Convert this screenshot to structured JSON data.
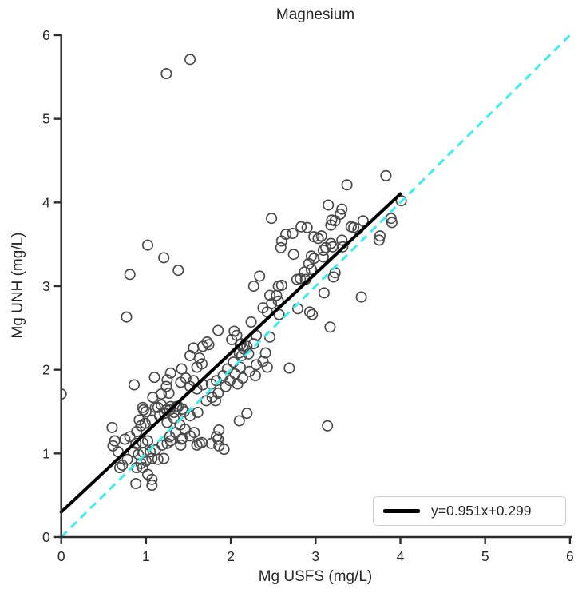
{
  "chart_data": {
    "type": "scatter",
    "title": "Magnesium",
    "xlabel": "Mg USFS (mg/L)",
    "ylabel": "Mg UNH (mg/L)",
    "xlim": [
      0,
      6
    ],
    "ylim": [
      0,
      6
    ],
    "xticks": [
      0,
      1,
      2,
      3,
      4,
      5,
      6
    ],
    "yticks": [
      0,
      1,
      2,
      3,
      4,
      5,
      6
    ],
    "grid": false,
    "legend": {
      "position": "lower right",
      "entries": [
        {
          "label": "y=0.951x+0.299",
          "color": "#000000",
          "style": "solid"
        }
      ]
    },
    "lines": [
      {
        "name": "identity",
        "from": [
          0,
          0
        ],
        "to": [
          6,
          6
        ],
        "color": "#3deded",
        "style": "dashed",
        "width": 3
      },
      {
        "name": "regression",
        "label": "y=0.951x+0.299",
        "slope": 0.951,
        "intercept": 0.299,
        "from": [
          0,
          0.299
        ],
        "to": [
          4,
          4.103
        ],
        "color": "#000000",
        "style": "solid",
        "width": 4
      }
    ],
    "marker": {
      "shape": "open-circle",
      "edge_color": "#4a4a4a",
      "fill": "none"
    },
    "points": [
      [
        1.24,
        5.54
      ],
      [
        1.52,
        5.71
      ],
      [
        0.0,
        1.71
      ],
      [
        0.6,
        1.31
      ],
      [
        0.77,
        2.63
      ],
      [
        0.81,
        3.14
      ],
      [
        1.02,
        3.49
      ],
      [
        1.21,
        3.34
      ],
      [
        1.38,
        3.19
      ],
      [
        2.69,
        2.02
      ],
      [
        3.14,
        1.33
      ],
      [
        3.54,
        2.87
      ],
      [
        3.17,
        2.51
      ],
      [
        2.46,
        2.39
      ],
      [
        3.83,
        4.32
      ],
      [
        3.37,
        4.21
      ],
      [
        4.01,
        4.02
      ],
      [
        3.15,
        3.97
      ],
      [
        3.31,
        3.92
      ],
      [
        3.29,
        3.86
      ],
      [
        3.23,
        3.78
      ],
      [
        3.18,
        3.73
      ],
      [
        3.56,
        3.78
      ],
      [
        3.45,
        3.7
      ],
      [
        3.5,
        3.68
      ],
      [
        3.89,
        3.81
      ],
      [
        3.9,
        3.76
      ],
      [
        3.76,
        3.6
      ],
      [
        3.75,
        3.55
      ],
      [
        3.07,
        3.6
      ],
      [
        3.18,
        3.51
      ],
      [
        3.12,
        3.46
      ],
      [
        3.09,
        3.43
      ],
      [
        3.2,
        3.47
      ],
      [
        3.32,
        3.47
      ],
      [
        3.31,
        3.55
      ],
      [
        3.42,
        3.71
      ],
      [
        3.09,
        3.35
      ],
      [
        3.23,
        3.16
      ],
      [
        3.21,
        3.11
      ],
      [
        3.1,
        2.92
      ],
      [
        2.48,
        3.81
      ],
      [
        2.83,
        3.71
      ],
      [
        2.9,
        3.7
      ],
      [
        3.19,
        3.79
      ],
      [
        2.65,
        3.62
      ],
      [
        2.73,
        3.63
      ],
      [
        2.6,
        3.54
      ],
      [
        2.59,
        3.46
      ],
      [
        2.74,
        3.38
      ],
      [
        2.98,
        3.59
      ],
      [
        3.03,
        3.57
      ],
      [
        2.95,
        3.36
      ],
      [
        2.98,
        3.33
      ],
      [
        2.92,
        3.27
      ],
      [
        2.95,
        3.2
      ],
      [
        2.87,
        3.17
      ],
      [
        2.82,
        3.09
      ],
      [
        2.78,
        3.08
      ],
      [
        2.88,
        3.08
      ],
      [
        2.34,
        3.12
      ],
      [
        2.27,
        3.0
      ],
      [
        2.6,
        3.01
      ],
      [
        2.56,
        3.0
      ],
      [
        2.93,
        2.69
      ],
      [
        2.96,
        2.66
      ],
      [
        2.79,
        2.73
      ],
      [
        2.46,
        2.89
      ],
      [
        2.54,
        2.89
      ],
      [
        2.56,
        2.82
      ],
      [
        2.48,
        2.79
      ],
      [
        2.38,
        2.74
      ],
      [
        2.43,
        2.69
      ],
      [
        2.57,
        2.66
      ],
      [
        2.24,
        2.57
      ],
      [
        2.04,
        2.46
      ],
      [
        2.07,
        2.41
      ],
      [
        1.85,
        2.47
      ],
      [
        1.72,
        2.33
      ],
      [
        2.01,
        2.36
      ],
      [
        2.12,
        2.31
      ],
      [
        2.15,
        2.25
      ],
      [
        2.19,
        2.28
      ],
      [
        2.1,
        2.2
      ],
      [
        2.3,
        2.41
      ],
      [
        1.56,
        2.26
      ],
      [
        1.67,
        2.28
      ],
      [
        1.74,
        2.3
      ],
      [
        1.52,
        2.17
      ],
      [
        1.63,
        2.14
      ],
      [
        1.66,
        2.07
      ],
      [
        1.6,
        2.03
      ],
      [
        1.42,
        2.01
      ],
      [
        1.47,
        1.9
      ],
      [
        1.41,
        1.85
      ],
      [
        1.56,
        1.87
      ],
      [
        1.52,
        1.8
      ],
      [
        1.6,
        1.77
      ],
      [
        1.67,
        1.82
      ],
      [
        1.77,
        1.83
      ],
      [
        1.83,
        1.87
      ],
      [
        1.91,
        1.93
      ],
      [
        1.96,
        2.01
      ],
      [
        2.03,
        2.09
      ],
      [
        2.13,
        2.17
      ],
      [
        2.21,
        2.19
      ],
      [
        2.11,
        2.03
      ],
      [
        2.05,
        1.95
      ],
      [
        1.99,
        1.87
      ],
      [
        1.94,
        1.8
      ],
      [
        1.85,
        1.72
      ],
      [
        1.78,
        1.67
      ],
      [
        1.71,
        1.63
      ],
      [
        1.82,
        1.63
      ],
      [
        2.08,
        1.83
      ],
      [
        2.14,
        1.9
      ],
      [
        2.22,
        1.98
      ],
      [
        2.3,
        2.06
      ],
      [
        2.38,
        2.1
      ],
      [
        2.43,
        2.03
      ],
      [
        2.29,
        1.93
      ],
      [
        2.19,
        1.48
      ],
      [
        2.1,
        1.39
      ],
      [
        1.86,
        1.28
      ],
      [
        1.52,
        1.45
      ],
      [
        1.45,
        1.5
      ],
      [
        2.41,
        2.2
      ],
      [
        2.11,
        2.3
      ],
      [
        2.27,
        2.31
      ],
      [
        0.86,
        1.82
      ],
      [
        1.1,
        1.91
      ],
      [
        1.29,
        1.96
      ],
      [
        1.25,
        1.88
      ],
      [
        1.24,
        1.8
      ],
      [
        1.08,
        1.67
      ],
      [
        1.18,
        1.71
      ],
      [
        1.27,
        1.72
      ],
      [
        0.97,
        1.52
      ],
      [
        0.94,
        1.33
      ],
      [
        0.89,
        1.26
      ],
      [
        1.14,
        1.55
      ],
      [
        1.29,
        1.56
      ],
      [
        1.24,
        1.52
      ],
      [
        1.33,
        1.49
      ],
      [
        1.0,
        1.5
      ],
      [
        0.96,
        1.55
      ],
      [
        1.11,
        1.55
      ],
      [
        1.18,
        1.58
      ],
      [
        0.92,
        1.4
      ],
      [
        0.99,
        1.36
      ],
      [
        1.07,
        1.4
      ],
      [
        1.16,
        1.45
      ],
      [
        1.22,
        1.48
      ],
      [
        1.28,
        1.52
      ],
      [
        1.36,
        1.56
      ],
      [
        1.43,
        1.53
      ],
      [
        1.33,
        1.42
      ],
      [
        1.25,
        1.37
      ],
      [
        1.4,
        1.34
      ],
      [
        1.46,
        1.29
      ],
      [
        1.35,
        1.25
      ],
      [
        1.28,
        1.2
      ],
      [
        1.43,
        1.18
      ],
      [
        1.52,
        1.21
      ],
      [
        1.57,
        1.25
      ],
      [
        1.61,
        1.49
      ],
      [
        1.66,
        1.13
      ],
      [
        1.6,
        1.1
      ],
      [
        1.38,
        1.56
      ],
      [
        0.61,
        1.09
      ],
      [
        0.67,
        1.02
      ],
      [
        0.63,
        1.15
      ],
      [
        0.75,
        1.17
      ],
      [
        0.81,
        1.2
      ],
      [
        0.88,
        1.12
      ],
      [
        0.96,
        1.13
      ],
      [
        1.02,
        1.15
      ],
      [
        0.85,
        1.02
      ],
      [
        0.91,
        0.99
      ],
      [
        0.97,
        1.01
      ],
      [
        0.78,
        0.93
      ],
      [
        0.72,
        0.86
      ],
      [
        0.69,
        0.83
      ],
      [
        1.05,
        1.02
      ],
      [
        1.11,
        1.04
      ],
      [
        1.07,
        0.94
      ],
      [
        1.0,
        0.91
      ],
      [
        0.94,
        0.88
      ],
      [
        0.89,
        0.83
      ],
      [
        1.14,
        0.93
      ],
      [
        1.21,
        0.94
      ],
      [
        1.25,
        1.12
      ],
      [
        1.19,
        1.1
      ],
      [
        1.29,
        1.15
      ],
      [
        1.02,
        0.75
      ],
      [
        1.07,
        0.69
      ],
      [
        1.07,
        0.62
      ],
      [
        0.88,
        0.64
      ],
      [
        0.96,
        0.83
      ],
      [
        1.42,
        1.17
      ],
      [
        1.41,
        1.1
      ],
      [
        1.63,
        1.12
      ],
      [
        1.77,
        1.12
      ],
      [
        1.85,
        1.17
      ],
      [
        1.86,
        1.09
      ],
      [
        1.92,
        1.05
      ],
      [
        1.83,
        1.2
      ]
    ]
  },
  "colors": {
    "text": "#262626",
    "spine": "#2b2b2b",
    "marker_edge": "#4a4a4a",
    "regression_line": "#000000",
    "identity_line": "#3deded",
    "legend_border": "#cccccc",
    "background": "#ffffff"
  }
}
